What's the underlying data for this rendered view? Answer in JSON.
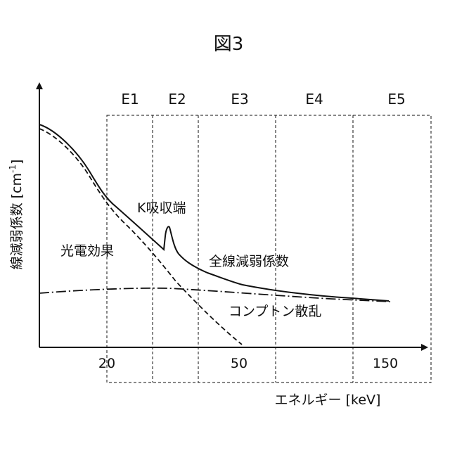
{
  "figure": {
    "title": "図3",
    "y_axis_label": "線減弱係数 [cm",
    "y_axis_label_sup": "-1",
    "y_axis_label_end": "]",
    "x_axis_label": "エネルギー [keV]"
  },
  "regions": [
    "E1",
    "E2",
    "E3",
    "E4",
    "E5"
  ],
  "x_ticks": [
    "20",
    "50",
    "150"
  ],
  "curve_labels": {
    "k_edge": "K吸収端",
    "photoelectric": "光電効果",
    "total": "全線減弱係数",
    "compton": "コンプトン散乱"
  },
  "colors": {
    "ink": "#111111",
    "background": "#ffffff"
  }
}
